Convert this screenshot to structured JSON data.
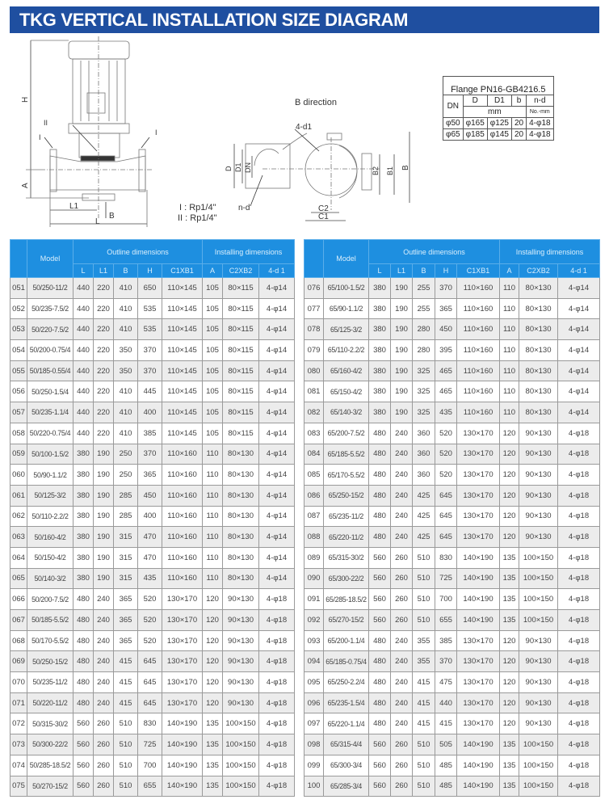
{
  "title": "TKG VERTICAL INSTALLATION SIZE DIAGRAM",
  "diagram": {
    "front_labels": {
      "H": "H",
      "A": "A",
      "L": "L",
      "L1": "L1",
      "B": "B",
      "I_left": "I",
      "I_right": "I",
      "II": "II"
    },
    "legend": {
      "I": "I :  Rp1/4\"",
      "II": "II :  Rp1/4\""
    },
    "b_direction": {
      "title": "B direction",
      "d1": "4-d1",
      "nd": "n-d",
      "D": "D",
      "D1": "D1",
      "DN": "DN",
      "B": "B",
      "B1": "B1",
      "B2": "B2",
      "C1": "C1",
      "C2": "C2"
    }
  },
  "flange": {
    "caption": "Flange PN16-GB4216.5",
    "headers": [
      "DN",
      "D",
      "D1",
      "b",
      "n-d"
    ],
    "unit": "mm",
    "unit_nd": "No.-mm",
    "rows": [
      [
        "φ50",
        "φ165",
        "φ125",
        "20",
        "4-φ18"
      ],
      [
        "φ65",
        "φ185",
        "φ145",
        "20",
        "4-φ18"
      ]
    ]
  },
  "table": {
    "model_header": "Model",
    "outline_header": "Outline dimensions",
    "installing_header": "Installing dimensions",
    "sub_headers": [
      "L",
      "L1",
      "B",
      "H",
      "C1XB1",
      "A",
      "C2XB2",
      "4-d 1"
    ],
    "left_rows": [
      [
        "051",
        "50/250-11/2",
        "440",
        "220",
        "410",
        "650",
        "110×145",
        "105",
        "80×115",
        "4-φ14"
      ],
      [
        "052",
        "50/235-7.5/2",
        "440",
        "220",
        "410",
        "535",
        "110×145",
        "105",
        "80×115",
        "4-φ14"
      ],
      [
        "053",
        "50/220-7.5/2",
        "440",
        "220",
        "410",
        "535",
        "110×145",
        "105",
        "80×115",
        "4-φ14"
      ],
      [
        "054",
        "50/200-0.75/4",
        "440",
        "220",
        "350",
        "370",
        "110×145",
        "105",
        "80×115",
        "4-φ14"
      ],
      [
        "055",
        "50/185-0.55/4",
        "440",
        "220",
        "350",
        "370",
        "110×145",
        "105",
        "80×115",
        "4-φ14"
      ],
      [
        "056",
        "50/250-1.5/4",
        "440",
        "220",
        "410",
        "445",
        "110×145",
        "105",
        "80×115",
        "4-φ14"
      ],
      [
        "057",
        "50/235-1.1/4",
        "440",
        "220",
        "410",
        "400",
        "110×145",
        "105",
        "80×115",
        "4-φ14"
      ],
      [
        "058",
        "50/220-0.75/4",
        "440",
        "220",
        "410",
        "385",
        "110×145",
        "105",
        "80×115",
        "4-φ14"
      ],
      [
        "059",
        "50/100-1.5/2",
        "380",
        "190",
        "250",
        "370",
        "110×160",
        "110",
        "80×130",
        "4-φ14"
      ],
      [
        "060",
        "50/90-1.1/2",
        "380",
        "190",
        "250",
        "365",
        "110×160",
        "110",
        "80×130",
        "4-φ14"
      ],
      [
        "061",
        "50/125-3/2",
        "380",
        "190",
        "285",
        "450",
        "110×160",
        "110",
        "80×130",
        "4-φ14"
      ],
      [
        "062",
        "50/110-2.2/2",
        "380",
        "190",
        "285",
        "400",
        "110×160",
        "110",
        "80×130",
        "4-φ14"
      ],
      [
        "063",
        "50/160-4/2",
        "380",
        "190",
        "315",
        "470",
        "110×160",
        "110",
        "80×130",
        "4-φ14"
      ],
      [
        "064",
        "50/150-4/2",
        "380",
        "190",
        "315",
        "470",
        "110×160",
        "110",
        "80×130",
        "4-φ14"
      ],
      [
        "065",
        "50/140-3/2",
        "380",
        "190",
        "315",
        "435",
        "110×160",
        "110",
        "80×130",
        "4-φ14"
      ],
      [
        "066",
        "50/200-7.5/2",
        "480",
        "240",
        "365",
        "520",
        "130×170",
        "120",
        "90×130",
        "4-φ18"
      ],
      [
        "067",
        "50/185-5.5/2",
        "480",
        "240",
        "365",
        "520",
        "130×170",
        "120",
        "90×130",
        "4-φ18"
      ],
      [
        "068",
        "50/170-5.5/2",
        "480",
        "240",
        "365",
        "520",
        "130×170",
        "120",
        "90×130",
        "4-φ18"
      ],
      [
        "069",
        "50/250-15/2",
        "480",
        "240",
        "415",
        "645",
        "130×170",
        "120",
        "90×130",
        "4-φ18"
      ],
      [
        "070",
        "50/235-11/2",
        "480",
        "240",
        "415",
        "645",
        "130×170",
        "120",
        "90×130",
        "4-φ18"
      ],
      [
        "071",
        "50/220-11/2",
        "480",
        "240",
        "415",
        "645",
        "130×170",
        "120",
        "90×130",
        "4-φ18"
      ],
      [
        "072",
        "50/315-30/2",
        "560",
        "260",
        "510",
        "830",
        "140×190",
        "135",
        "100×150",
        "4-φ18"
      ],
      [
        "073",
        "50/300-22/2",
        "560",
        "260",
        "510",
        "725",
        "140×190",
        "135",
        "100×150",
        "4-φ18"
      ],
      [
        "074",
        "50/285-18.5/2",
        "560",
        "260",
        "510",
        "700",
        "140×190",
        "135",
        "100×150",
        "4-φ18"
      ],
      [
        "075",
        "50/270-15/2",
        "560",
        "260",
        "510",
        "655",
        "140×190",
        "135",
        "100×150",
        "4-φ18"
      ]
    ],
    "right_rows": [
      [
        "076",
        "65/100-1.5/2",
        "380",
        "190",
        "255",
        "370",
        "110×160",
        "110",
        "80×130",
        "4-φ14"
      ],
      [
        "077",
        "65/90-1.1/2",
        "380",
        "190",
        "255",
        "365",
        "110×160",
        "110",
        "80×130",
        "4-φ14"
      ],
      [
        "078",
        "65/125-3/2",
        "380",
        "190",
        "280",
        "450",
        "110×160",
        "110",
        "80×130",
        "4-φ14"
      ],
      [
        "079",
        "65/110-2.2/2",
        "380",
        "190",
        "280",
        "395",
        "110×160",
        "110",
        "80×130",
        "4-φ14"
      ],
      [
        "080",
        "65/160-4/2",
        "380",
        "190",
        "325",
        "465",
        "110×160",
        "110",
        "80×130",
        "4-φ14"
      ],
      [
        "081",
        "65/150-4/2",
        "380",
        "190",
        "325",
        "465",
        "110×160",
        "110",
        "80×130",
        "4-φ14"
      ],
      [
        "082",
        "65/140-3/2",
        "380",
        "190",
        "325",
        "435",
        "110×160",
        "110",
        "80×130",
        "4-φ14"
      ],
      [
        "083",
        "65/200-7.5/2",
        "480",
        "240",
        "360",
        "520",
        "130×170",
        "120",
        "90×130",
        "4-φ18"
      ],
      [
        "084",
        "65/185-5.5/2",
        "480",
        "240",
        "360",
        "520",
        "130×170",
        "120",
        "90×130",
        "4-φ18"
      ],
      [
        "085",
        "65/170-5.5/2",
        "480",
        "240",
        "360",
        "520",
        "130×170",
        "120",
        "90×130",
        "4-φ18"
      ],
      [
        "086",
        "65/250-15/2",
        "480",
        "240",
        "425",
        "645",
        "130×170",
        "120",
        "90×130",
        "4-φ18"
      ],
      [
        "087",
        "65/235-11/2",
        "480",
        "240",
        "425",
        "645",
        "130×170",
        "120",
        "90×130",
        "4-φ18"
      ],
      [
        "088",
        "65/220-11/2",
        "480",
        "240",
        "425",
        "645",
        "130×170",
        "120",
        "90×130",
        "4-φ18"
      ],
      [
        "089",
        "65/315-30/2",
        "560",
        "260",
        "510",
        "830",
        "140×190",
        "135",
        "100×150",
        "4-φ18"
      ],
      [
        "090",
        "65/300-22/2",
        "560",
        "260",
        "510",
        "725",
        "140×190",
        "135",
        "100×150",
        "4-φ18"
      ],
      [
        "091",
        "65/285-18.5/2",
        "560",
        "260",
        "510",
        "700",
        "140×190",
        "135",
        "100×150",
        "4-φ18"
      ],
      [
        "092",
        "65/270-15/2",
        "560",
        "260",
        "510",
        "655",
        "140×190",
        "135",
        "100×150",
        "4-φ18"
      ],
      [
        "093",
        "65/200-1.1/4",
        "480",
        "240",
        "355",
        "385",
        "130×170",
        "120",
        "90×130",
        "4-φ18"
      ],
      [
        "094",
        "65/185-0.75/4",
        "480",
        "240",
        "355",
        "370",
        "130×170",
        "120",
        "90×130",
        "4-φ18"
      ],
      [
        "095",
        "65/250-2.2/4",
        "480",
        "240",
        "415",
        "475",
        "130×170",
        "120",
        "90×130",
        "4-φ18"
      ],
      [
        "096",
        "65/235-1.5/4",
        "480",
        "240",
        "415",
        "440",
        "130×170",
        "120",
        "90×130",
        "4-φ18"
      ],
      [
        "097",
        "65/220-1.1/4",
        "480",
        "240",
        "415",
        "415",
        "130×170",
        "120",
        "90×130",
        "4-φ18"
      ],
      [
        "098",
        "65/315-4/4",
        "560",
        "260",
        "510",
        "505",
        "140×190",
        "135",
        "100×150",
        "4-φ18"
      ],
      [
        "099",
        "65/300-3/4",
        "560",
        "260",
        "510",
        "485",
        "140×190",
        "135",
        "100×150",
        "4-φ18"
      ],
      [
        "100",
        "65/285-3/4",
        "560",
        "260",
        "510",
        "485",
        "140×190",
        "135",
        "100×150",
        "4-φ18"
      ]
    ]
  },
  "colors": {
    "title_bar": "#1f4fa0",
    "table_header": "#1e8fe0",
    "row_alt": "#ececec"
  }
}
